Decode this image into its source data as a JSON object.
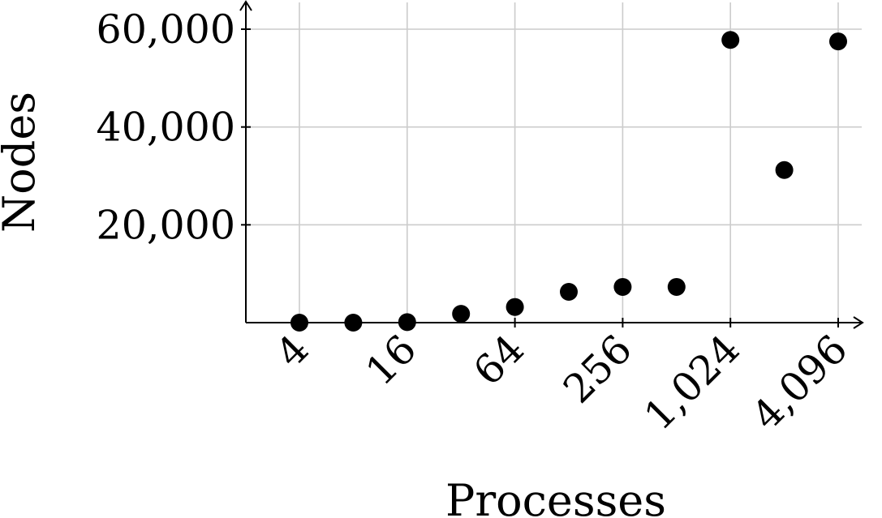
{
  "chart_data": {
    "type": "scatter",
    "xlabel": "Processes",
    "ylabel": "Nodes",
    "x_scale": "log2",
    "xlim": [
      4,
      4096
    ],
    "ylim": [
      0,
      60000
    ],
    "x_ticks": [
      4,
      16,
      64,
      256,
      1024,
      4096
    ],
    "x_tick_labels": [
      "4",
      "16",
      "64",
      "256",
      "1,024",
      "4,096"
    ],
    "y_ticks": [
      20000,
      40000,
      60000
    ],
    "y_tick_labels": [
      "20,000",
      "40,000",
      "60,000"
    ],
    "grid": true,
    "series": [
      {
        "x": [
          4,
          8,
          16,
          32,
          64,
          128,
          256,
          512,
          1024,
          2048,
          4096
        ],
        "y": [
          0,
          0,
          100,
          1800,
          3200,
          6300,
          7300,
          7300,
          57800,
          31200,
          57500
        ]
      }
    ],
    "colors": {
      "marker": "#000000",
      "grid": "#cccccc",
      "axis": "#000000"
    }
  }
}
